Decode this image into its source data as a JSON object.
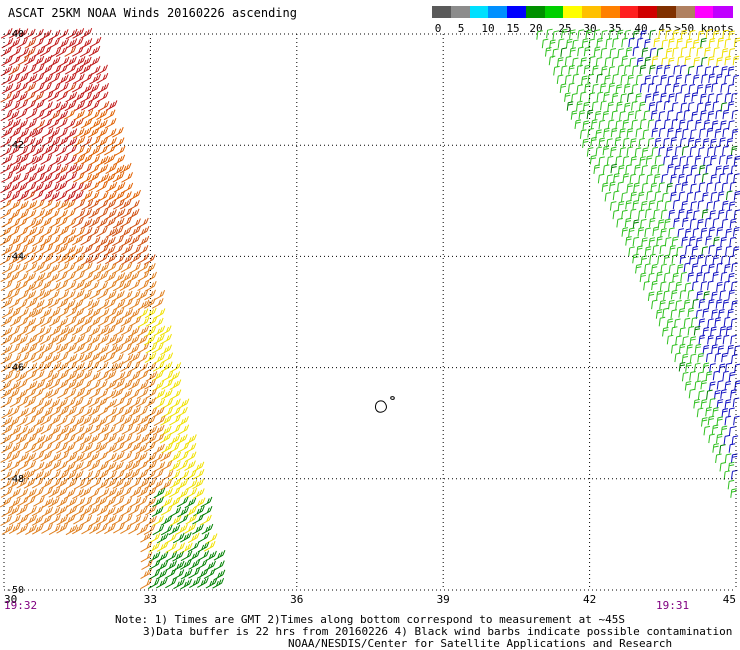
{
  "title": "ASCAT 25KM NOAA Winds 20160226 ascending",
  "legend": {
    "ticks": [
      "0",
      "5",
      "10",
      "15",
      "20",
      "25",
      "30",
      "35",
      "40",
      "45",
      ">50 knots"
    ],
    "colors": [
      "#5a5a5a",
      "#8c8c8c",
      "#00e0ff",
      "#0090ff",
      "#0000ff",
      "#009000",
      "#00d000",
      "#ffff00",
      "#ffc000",
      "#ff8000",
      "#ff2020",
      "#d00000",
      "#803000",
      "#b08060",
      "#ff00ff",
      "#c000ff"
    ]
  },
  "map": {
    "lon_labels": [
      "30",
      "33",
      "36",
      "39",
      "42",
      "45"
    ],
    "lon_values": [
      30,
      33,
      36,
      39,
      42,
      45
    ],
    "lat_labels": [
      "-40",
      "-42",
      "-44",
      "-46",
      "-48",
      "-50"
    ],
    "lat_values": [
      -40,
      -42,
      -44,
      -46,
      -48,
      -50
    ],
    "lon_range": [
      30,
      45
    ],
    "lat_range": [
      -50,
      -40
    ],
    "grid": "dotted",
    "swaths": [
      {
        "side": "west",
        "speed_bands": [
          "red",
          "orange",
          "yellow",
          "green"
        ]
      },
      {
        "side": "east",
        "speed_bands": [
          "green",
          "blue",
          "yellow"
        ]
      }
    ],
    "islands": [
      "Prince Edward Islands"
    ]
  },
  "times": {
    "left": "19:32",
    "right": "19:31"
  },
  "notes": {
    "line1": "Note: 1) Times are GMT 2)Times along bottom correspond to measurement at ~45S",
    "line2": "3)Data buffer is 22 hrs from 20160226 4) Black wind barbs indicate possible contamination",
    "line3": "NOAA/NESDIS/Center for Satellite Applications and Research"
  }
}
